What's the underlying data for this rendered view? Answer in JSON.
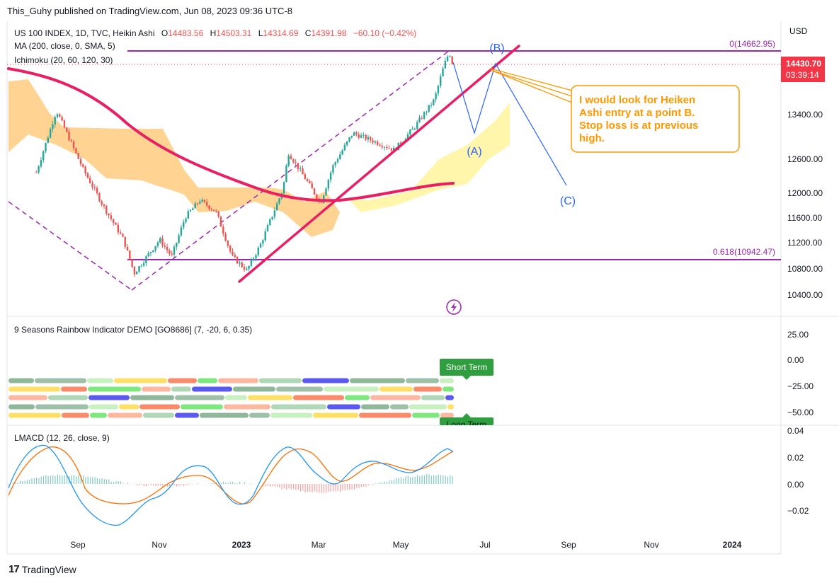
{
  "header": {
    "published": "This_Guhy published on TradingView.com, Jun 08, 2023 09:36 UTC-8"
  },
  "footer": {
    "logo_text": "TradingView"
  },
  "legend": {
    "symbol": "US 100 INDEX, 1D, TVC, Heikin Ashi",
    "o_label": "O",
    "o_value": "14483.56",
    "h_label": "H",
    "h_value": "14503.31",
    "l_label": "L",
    "l_value": "14314.69",
    "c_label": "C",
    "c_value": "14391.98",
    "change": "−60.10 (−0.42%)",
    "ma": "MA (200, close, 0, SMA, 5)",
    "ichimoku": "Ichimoku (20, 60, 120, 30)"
  },
  "price_axis": {
    "currency": "USD",
    "ticks": [
      "13400.00",
      "12600.00",
      "12000.00",
      "11600.00",
      "11200.00",
      "10800.00",
      "10400.00"
    ],
    "current_price": "14430.70",
    "countdown": "03:39:14"
  },
  "fib_levels": [
    {
      "label": "0(14662.95)",
      "value": 14662.95
    },
    {
      "label": "0.618(10942.47)",
      "value": 10942.47
    }
  ],
  "waves": {
    "a": "(A)",
    "b": "(B)",
    "c": "(C)"
  },
  "annotation": "I would look for Heiken Ashi entry at a point B. Stop loss is at previous high.",
  "rainbow": {
    "title": "9 Seasons Rainbow Indicator DEMO [GO8686] (7, -20, 6, 0.35)",
    "ticks": [
      "25.00",
      "0.00",
      "−25.00",
      "−50.00"
    ],
    "short_term": "Short Term",
    "long_term": "Long Term"
  },
  "lmacd": {
    "title": "LMACD (12, 26, close, 9)",
    "ticks": [
      "0.04",
      "0.02",
      "0.00",
      "−0.02"
    ]
  },
  "time_axis": [
    "Sep",
    "Nov",
    "2023",
    "Mar",
    "May",
    "Jul",
    "Sep",
    "Nov",
    "2024"
  ],
  "colors": {
    "bull": "#26a69a",
    "bear": "#ef5350",
    "ma": "#e91e63",
    "fib": "#9c27b0",
    "wave": "#2962ff",
    "callout": "#ff9800",
    "cloud_bear": "#ffcc80",
    "cloud_bull": "#fff59d",
    "badge": "#f23645",
    "macd": "#2196f3",
    "signal": "#ff6d00",
    "term_badge": "#2e9e3e"
  },
  "chart_data": {
    "type": "candlestick",
    "chart_style": "Heikin Ashi",
    "timeframe": "1D",
    "price_range": [
      10150,
      14900
    ],
    "close_path": [
      [
        "2022-08-01",
        12500
      ],
      [
        "2022-08-16",
        13600
      ],
      [
        "2022-09-05",
        12550
      ],
      [
        "2022-09-20",
        11900
      ],
      [
        "2022-10-05",
        11300
      ],
      [
        "2022-10-13",
        10700
      ],
      [
        "2022-11-01",
        11300
      ],
      [
        "2022-11-10",
        11000
      ],
      [
        "2022-11-20",
        11700
      ],
      [
        "2022-12-01",
        12000
      ],
      [
        "2022-12-13",
        11800
      ],
      [
        "2022-12-25",
        11000
      ],
      [
        "2023-01-05",
        10750
      ],
      [
        "2023-01-15",
        11200
      ],
      [
        "2023-02-01",
        12200
      ],
      [
        "2023-02-05",
        12850
      ],
      [
        "2023-02-20",
        12300
      ],
      [
        "2023-03-01",
        11950
      ],
      [
        "2023-03-10",
        12600
      ],
      [
        "2023-03-25",
        13200
      ],
      [
        "2023-04-10",
        13050
      ],
      [
        "2023-04-25",
        12900
      ],
      [
        "2023-05-10",
        13300
      ],
      [
        "2023-05-25",
        13800
      ],
      [
        "2023-06-01",
        14400
      ],
      [
        "2023-06-05",
        14640
      ],
      [
        "2023-06-08",
        14392
      ]
    ],
    "ma200_path": [
      [
        "2022-08-01",
        14300
      ],
      [
        "2022-09-15",
        13600
      ],
      [
        "2022-11-01",
        12800
      ],
      [
        "2022-12-15",
        12150
      ],
      [
        "2023-01-20",
        11950
      ],
      [
        "2023-03-01",
        11950
      ],
      [
        "2023-05-01",
        12100
      ],
      [
        "2023-06-08",
        12250
      ]
    ],
    "wave_path": [
      [
        "2023-06-08",
        14430
      ],
      [
        "2023-06-23",
        12900
      ],
      [
        "2023-07-08",
        14500
      ],
      [
        "2023-08-05",
        12050
      ]
    ]
  }
}
